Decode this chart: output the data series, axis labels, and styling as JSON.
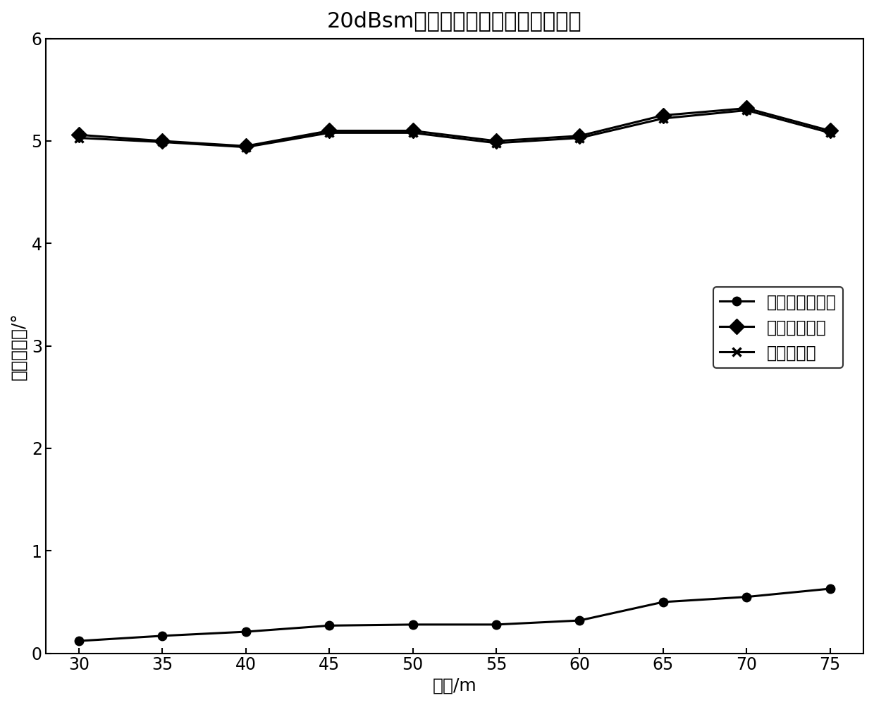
{
  "title": "20dBsm时单目标高度角检测误差均值",
  "xlabel": "距离/m",
  "ylabel": "高度角误差/°",
  "x": [
    30,
    35,
    40,
    45,
    50,
    55,
    60,
    65,
    70,
    75
  ],
  "line1_y": [
    0.12,
    0.17,
    0.21,
    0.27,
    0.28,
    0.28,
    0.32,
    0.5,
    0.55,
    0.63
  ],
  "line2_y": [
    5.06,
    5.0,
    4.95,
    5.1,
    5.1,
    5.0,
    5.05,
    5.25,
    5.32,
    5.1
  ],
  "line3_y": [
    5.03,
    4.99,
    4.94,
    5.08,
    5.08,
    4.98,
    5.03,
    5.22,
    5.3,
    5.08
  ],
  "line1_label": "理想情况无误差",
  "line2_label": "有误差不校正",
  "line3_label": "有误差校正",
  "xlim": [
    28,
    77
  ],
  "ylim": [
    0,
    6
  ],
  "xticks": [
    30,
    35,
    40,
    45,
    50,
    55,
    60,
    65,
    70,
    75
  ],
  "yticks": [
    0,
    1,
    2,
    3,
    4,
    5,
    6
  ],
  "color": "#000000",
  "background_color": "#ffffff",
  "title_fontsize": 22,
  "label_fontsize": 18,
  "tick_fontsize": 17,
  "legend_fontsize": 17,
  "linewidth": 2.2
}
